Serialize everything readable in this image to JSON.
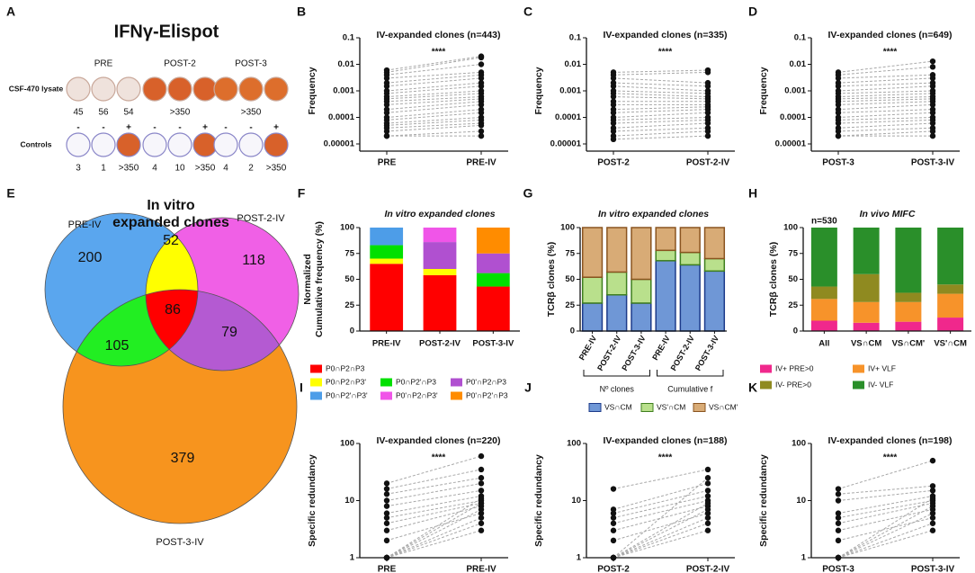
{
  "chart_data": [
    {
      "type": "elispot",
      "label": "A",
      "title": "IFNγ-Elispot",
      "groups": [
        "PRE",
        "POST-2",
        "POST-3"
      ],
      "rows": [
        {
          "label": "CSF-470 lysate",
          "signs": null,
          "counts": [
            [
              45,
              56,
              54
            ],
            [
              ">350"
            ],
            [
              ">350"
            ]
          ],
          "well_colors": [
            [
              "#efe2dc",
              "#efe2dc",
              "#efe2dc"
            ],
            [
              "#d8612a",
              "#d8612a",
              "#d8612a"
            ],
            [
              "#dd6e2c",
              "#dd6e2c",
              "#dd6e2c"
            ]
          ]
        },
        {
          "label": "Controls",
          "signs": [
            [
              "-",
              "-",
              "+"
            ],
            [
              "-",
              "-",
              "+"
            ],
            [
              "-",
              "-",
              "+"
            ]
          ],
          "counts": [
            [
              3,
              1,
              ">350"
            ],
            [
              4,
              10,
              ">350"
            ],
            [
              4,
              2,
              ">350"
            ]
          ],
          "well_colors": [
            [
              "#f7f6fb",
              "#f7f6fb",
              "#d8612a"
            ],
            [
              "#f7f6fb",
              "#f7f6fb",
              "#d8612a"
            ],
            [
              "#f7f6fb",
              "#f7f6fb",
              "#d8612a"
            ]
          ]
        }
      ]
    },
    {
      "type": "paired",
      "label": "B",
      "title": "IV-expanded clones (n=443)",
      "annotation": "****",
      "ylabel": "Frequency",
      "categories": [
        "PRE",
        "PRE-IV"
      ],
      "log": true,
      "ylim": [
        1e-05,
        0.1
      ],
      "yticks": [
        0.1,
        0.01,
        0.001,
        0.0001,
        1e-05
      ],
      "pairs": [
        [
          0.006,
          0.02
        ],
        [
          0.005,
          0.018
        ],
        [
          0.004,
          0.01
        ],
        [
          0.003,
          0.005
        ],
        [
          0.002,
          0.004
        ],
        [
          0.0015,
          0.003
        ],
        [
          0.001,
          0.002
        ],
        [
          0.0008,
          0.0015
        ],
        [
          0.0006,
          0.001
        ],
        [
          0.0005,
          0.0008
        ],
        [
          0.0004,
          0.0006
        ],
        [
          0.0003,
          0.0005
        ],
        [
          0.0002,
          0.0004
        ],
        [
          0.00015,
          0.0003
        ],
        [
          0.0001,
          0.0002
        ],
        [
          8e-05,
          0.00015
        ],
        [
          6e-05,
          0.0001
        ],
        [
          5e-05,
          8e-05
        ],
        [
          4e-05,
          6e-05
        ],
        [
          3e-05,
          5e-05
        ],
        [
          2e-05,
          3e-05
        ],
        [
          2e-05,
          2e-05
        ]
      ]
    },
    {
      "type": "paired",
      "label": "C",
      "title": "IV-expanded clones (n=335)",
      "annotation": "****",
      "ylabel": "Frequency",
      "categories": [
        "POST-2",
        "POST-2-IV"
      ],
      "log": true,
      "ylim": [
        1e-05,
        0.1
      ],
      "yticks": [
        0.1,
        0.01,
        0.001,
        0.0001,
        1e-05
      ],
      "pairs": [
        [
          0.005,
          0.006
        ],
        [
          0.004,
          0.005
        ],
        [
          0.003,
          0.002
        ],
        [
          0.002,
          0.0015
        ],
        [
          0.0015,
          0.001
        ],
        [
          0.001,
          0.0008
        ],
        [
          0.0008,
          0.0006
        ],
        [
          0.0006,
          0.0005
        ],
        [
          0.0004,
          0.0004
        ],
        [
          0.0003,
          0.0003
        ],
        [
          0.0002,
          0.00025
        ],
        [
          0.00015,
          0.0002
        ],
        [
          0.0001,
          0.00015
        ],
        [
          8e-05,
          0.0001
        ],
        [
          6e-05,
          8e-05
        ],
        [
          4e-05,
          6e-05
        ],
        [
          3e-05,
          4e-05
        ],
        [
          2e-05,
          3e-05
        ],
        [
          1.5e-05,
          2e-05
        ]
      ]
    },
    {
      "type": "paired",
      "label": "D",
      "title": "IV-expanded clones (n=649)",
      "annotation": "****",
      "ylabel": "Frequency",
      "categories": [
        "POST-3",
        "POST-3-IV"
      ],
      "log": true,
      "ylim": [
        1e-05,
        0.1
      ],
      "yticks": [
        0.1,
        0.01,
        0.001,
        0.0001,
        1e-05
      ],
      "pairs": [
        [
          0.005,
          0.013
        ],
        [
          0.004,
          0.008
        ],
        [
          0.003,
          0.004
        ],
        [
          0.002,
          0.003
        ],
        [
          0.0015,
          0.002
        ],
        [
          0.001,
          0.0015
        ],
        [
          0.0008,
          0.001
        ],
        [
          0.0006,
          0.0008
        ],
        [
          0.0005,
          0.0006
        ],
        [
          0.0004,
          0.0005
        ],
        [
          0.0003,
          0.0004
        ],
        [
          0.0002,
          0.0003
        ],
        [
          0.00015,
          0.0002
        ],
        [
          0.0001,
          0.00015
        ],
        [
          8e-05,
          0.0001
        ],
        [
          6e-05,
          8e-05
        ],
        [
          4e-05,
          6e-05
        ],
        [
          3e-05,
          4e-05
        ],
        [
          2e-05,
          3e-05
        ],
        [
          2e-05,
          2e-05
        ]
      ]
    },
    {
      "type": "venn",
      "label": "E",
      "title": [
        "In vitro",
        "expanded clones"
      ],
      "sets": [
        {
          "name": "PRE-IV",
          "color": "#5aa6ee"
        },
        {
          "name": "POST-2-IV",
          "color": "#f060e6"
        },
        {
          "name": "POST-3-IV",
          "color": "#f7941e"
        }
      ],
      "regions": [
        {
          "in": [
            0
          ],
          "count": 200,
          "color": "#5aa6ee"
        },
        {
          "in": [
            0,
            1
          ],
          "count": 52,
          "color": "#ffff00"
        },
        {
          "in": [
            1
          ],
          "count": 118,
          "color": "#f060e6"
        },
        {
          "in": [
            0,
            1,
            2
          ],
          "count": 86,
          "color": "#ff0000"
        },
        {
          "in": [
            0,
            2
          ],
          "count": 105,
          "color": "#22ee22"
        },
        {
          "in": [
            1,
            2
          ],
          "count": 79,
          "color": "#b45ad2"
        },
        {
          "in": [
            2
          ],
          "count": 379,
          "color": "#f7941e"
        }
      ]
    },
    {
      "type": "stacked-bar",
      "label": "F",
      "title": "In vitro expanded clones",
      "ylabel": [
        "Normalized",
        "Cumulative frequency (%)"
      ],
      "categories": [
        "PRE-IV",
        "POST-2-IV",
        "POST-3-IV"
      ],
      "ylim": [
        0,
        100
      ],
      "yticks": [
        0,
        25,
        50,
        75,
        100
      ],
      "series": [
        {
          "name": "P0∩P2∩P3",
          "color": "#ff0000",
          "values": [
            65,
            54,
            43
          ]
        },
        {
          "name": "P0∩P2∩P3'",
          "color": "#ffff00",
          "values": [
            5,
            6,
            0
          ]
        },
        {
          "name": "P0∩P2'∩P3",
          "color": "#00e000",
          "values": [
            13,
            0,
            13
          ]
        },
        {
          "name": "P0'∩P2∩P3",
          "color": "#b050d0",
          "values": [
            0,
            26,
            19
          ]
        },
        {
          "name": "P0∩P2'∩P3'",
          "color": "#4d9de8",
          "values": [
            17,
            0,
            0
          ]
        },
        {
          "name": "P0'∩P2∩P3'",
          "color": "#f055e8",
          "values": [
            0,
            14,
            0
          ]
        },
        {
          "name": "P0'∩P2'∩P3",
          "color": "#ff8c00",
          "values": [
            0,
            0,
            25
          ]
        }
      ]
    },
    {
      "type": "stacked-bar",
      "label": "G",
      "title": "In vitro expanded clones",
      "ylabel": [
        "TCRβ clones (%)"
      ],
      "xtick_rotation": -60,
      "categories": [
        "PRE-IV",
        "POST-2-IV",
        "POST-3-IV",
        "PRE-IV",
        "POST-2-IV",
        "POST-3-IV"
      ],
      "groups": [
        "Nº clones",
        "Cumulative f"
      ],
      "ylim": [
        0,
        100
      ],
      "yticks": [
        0,
        25,
        50,
        75,
        100
      ],
      "series": [
        {
          "name": "VS∩CM",
          "color": "#6f97d6",
          "border": "#1d3b8a",
          "values": [
            27,
            35,
            27,
            68,
            64,
            58
          ]
        },
        {
          "name": "VS'∩CM",
          "color": "#b9e08c",
          "border": "#3f7f1f",
          "values": [
            25,
            22,
            23,
            10,
            12,
            12
          ]
        },
        {
          "name": "VS∩CM'",
          "color": "#d8ab76",
          "border": "#8a5420",
          "values": [
            48,
            43,
            50,
            22,
            24,
            30
          ]
        }
      ]
    },
    {
      "type": "stacked-bar",
      "label": "H",
      "title": "In vivo MIFC",
      "annotation": "n=530",
      "ylabel": [
        "TCRβ clones (%)"
      ],
      "categories": [
        "All",
        "VS∩CM",
        "VS∩CM'",
        "VS'∩CM"
      ],
      "ylim": [
        0,
        100
      ],
      "yticks": [
        0,
        25,
        50,
        75,
        100
      ],
      "series": [
        {
          "name": "IV+ PRE>0",
          "color": "#f0288c",
          "values": [
            10,
            8,
            9,
            13
          ]
        },
        {
          "name": "IV+ VLF",
          "color": "#f7932a",
          "values": [
            21,
            20,
            19,
            23
          ]
        },
        {
          "name": "IV- PRE>0",
          "color": "#8f8a20",
          "values": [
            12,
            27,
            9,
            9
          ]
        },
        {
          "name": "IV- VLF",
          "color": "#2a8f2a",
          "values": [
            57,
            45,
            63,
            55
          ]
        }
      ]
    },
    {
      "type": "paired",
      "label": "I",
      "title": "IV-expanded clones (n=220)",
      "annotation": "****",
      "ylabel": "Specific redundancy",
      "categories": [
        "PRE",
        "PRE-IV"
      ],
      "log": true,
      "ylim": [
        1,
        100
      ],
      "yticks": [
        100,
        10,
        1
      ],
      "pairs": [
        [
          20,
          60
        ],
        [
          16,
          35
        ],
        [
          13,
          25
        ],
        [
          10,
          20
        ],
        [
          8,
          15
        ],
        [
          6,
          12
        ],
        [
          5,
          10
        ],
        [
          4,
          9
        ],
        [
          3,
          8
        ],
        [
          2,
          6
        ],
        [
          1,
          5
        ],
        [
          1,
          4
        ],
        [
          1,
          3
        ],
        [
          1,
          7
        ],
        [
          1,
          11
        ],
        [
          1,
          9
        ]
      ]
    },
    {
      "type": "paired",
      "label": "J",
      "title": "IV-expanded clones (n=188)",
      "annotation": "****",
      "ylabel": "Specific redundancy",
      "categories": [
        "POST-2",
        "POST-2-IV"
      ],
      "log": true,
      "ylim": [
        1,
        100
      ],
      "yticks": [
        100,
        10,
        1
      ],
      "pairs": [
        [
          16,
          35
        ],
        [
          7,
          20
        ],
        [
          6,
          15
        ],
        [
          5,
          12
        ],
        [
          4,
          10
        ],
        [
          3,
          8
        ],
        [
          2,
          6
        ],
        [
          1,
          5
        ],
        [
          1,
          4
        ],
        [
          1,
          3
        ],
        [
          1,
          7
        ],
        [
          1,
          9
        ],
        [
          1,
          25
        ]
      ]
    },
    {
      "type": "paired",
      "label": "K",
      "title": "IV-expanded clones (n=198)",
      "annotation": "****",
      "ylabel": "Specific redundancy",
      "categories": [
        "POST-3",
        "POST-3-IV"
      ],
      "log": true,
      "ylim": [
        1,
        100
      ],
      "yticks": [
        100,
        10,
        1
      ],
      "pairs": [
        [
          16,
          50
        ],
        [
          13,
          18
        ],
        [
          10,
          15
        ],
        [
          6,
          12
        ],
        [
          5,
          10
        ],
        [
          4,
          9
        ],
        [
          3,
          7
        ],
        [
          2,
          5
        ],
        [
          1,
          4
        ],
        [
          1,
          3
        ],
        [
          1,
          6
        ],
        [
          1,
          8
        ],
        [
          1,
          11
        ]
      ]
    }
  ]
}
